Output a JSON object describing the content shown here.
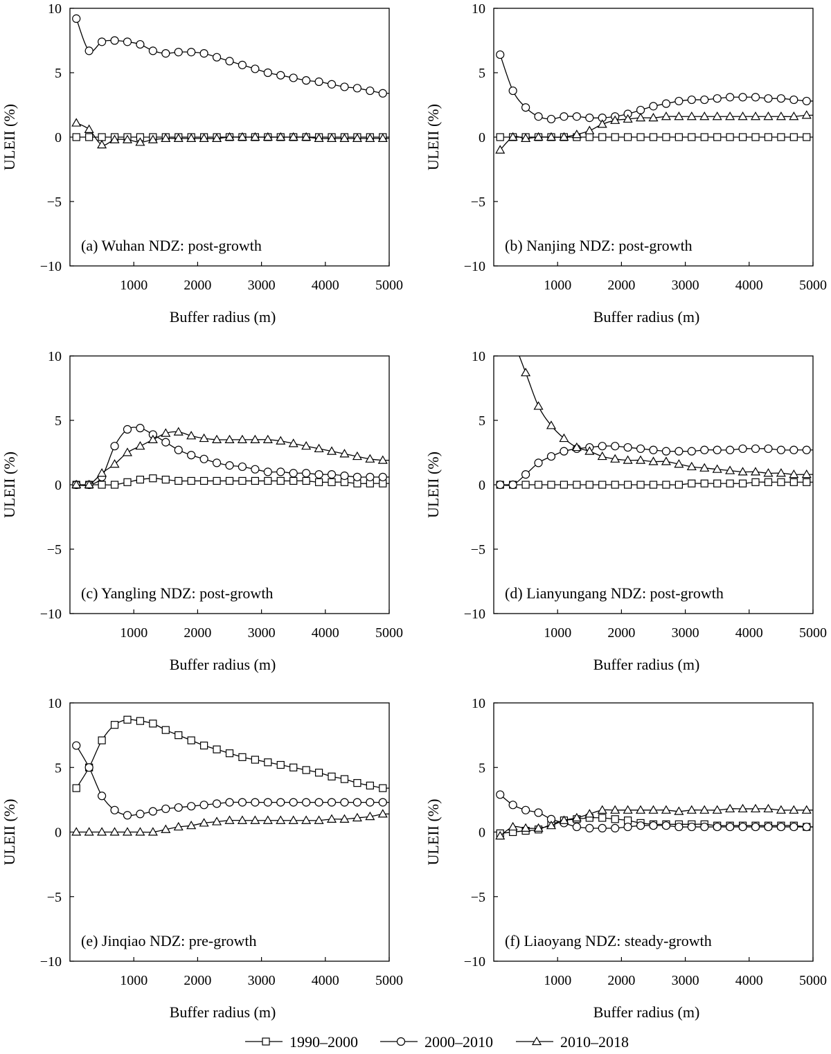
{
  "legend": [
    "1990–2000",
    "2000–2010",
    "2010–2018"
  ],
  "chart_data": [
    {
      "type": "line",
      "annotation": "(a) Wuhan NDZ: post-growth",
      "xlabel": "Buffer radius (m)",
      "ylabel": "ULEII (%)",
      "xlim": [
        0,
        5000
      ],
      "ylim": [
        -10,
        10
      ],
      "xticks": [
        "1000",
        "2000",
        "3000",
        "4000",
        "5000"
      ],
      "yticks": [
        "10",
        "5",
        "0",
        "−5",
        "−10"
      ],
      "x": [
        100,
        300,
        500,
        700,
        900,
        1100,
        1300,
        1500,
        1700,
        1900,
        2100,
        2300,
        2500,
        2700,
        2900,
        3100,
        3300,
        3500,
        3700,
        3900,
        4100,
        4300,
        4500,
        4700,
        4900
      ],
      "series": [
        {
          "name": "1990–2000",
          "marker": "square",
          "values": [
            0,
            0,
            0,
            0,
            0,
            0,
            0,
            0,
            0,
            0,
            0,
            0,
            0,
            0,
            0,
            0,
            0,
            0,
            0,
            0,
            0,
            0,
            0,
            0,
            0
          ]
        },
        {
          "name": "2000–2010",
          "marker": "circle",
          "values": [
            9.2,
            6.7,
            7.4,
            7.5,
            7.4,
            7.2,
            6.7,
            6.5,
            6.6,
            6.6,
            6.5,
            6.2,
            5.9,
            5.6,
            5.3,
            5.0,
            4.8,
            4.6,
            4.4,
            4.3,
            4.1,
            3.9,
            3.8,
            3.6,
            3.4
          ]
        },
        {
          "name": "2010–2018",
          "marker": "triangle",
          "values": [
            1.1,
            0.6,
            -0.6,
            -0.2,
            -0.2,
            -0.4,
            -0.2,
            -0.1,
            -0.1,
            -0.1,
            -0.1,
            -0.1,
            0,
            0,
            0,
            0,
            0,
            0,
            0,
            -0.1,
            -0.1,
            -0.1,
            -0.1,
            -0.1,
            -0.1
          ]
        }
      ]
    },
    {
      "type": "line",
      "annotation": "(b) Nanjing NDZ: post-growth",
      "xlabel": "Buffer radius (m)",
      "ylabel": "ULEII (%)",
      "xlim": [
        0,
        5000
      ],
      "ylim": [
        -10,
        10
      ],
      "xticks": [
        "1000",
        "2000",
        "3000",
        "4000",
        "5000"
      ],
      "yticks": [
        "10",
        "5",
        "0",
        "−5",
        "−10"
      ],
      "x": [
        100,
        300,
        500,
        700,
        900,
        1100,
        1300,
        1500,
        1700,
        1900,
        2100,
        2300,
        2500,
        2700,
        2900,
        3100,
        3300,
        3500,
        3700,
        3900,
        4100,
        4300,
        4500,
        4700,
        4900
      ],
      "series": [
        {
          "name": "1990–2000",
          "marker": "square",
          "values": [
            0,
            0,
            0,
            0,
            0,
            0,
            0,
            0,
            0,
            0,
            0,
            0,
            0,
            0,
            0,
            0,
            0,
            0,
            0,
            0,
            0,
            0,
            0,
            0,
            0
          ]
        },
        {
          "name": "2000–2010",
          "marker": "circle",
          "values": [
            6.4,
            3.6,
            2.3,
            1.6,
            1.4,
            1.6,
            1.6,
            1.5,
            1.5,
            1.6,
            1.8,
            2.1,
            2.4,
            2.6,
            2.8,
            2.9,
            2.9,
            3.0,
            3.1,
            3.1,
            3.1,
            3.0,
            3.0,
            2.9,
            2.8
          ]
        },
        {
          "name": "2010–2018",
          "marker": "triangle",
          "values": [
            -1.0,
            0,
            -0.1,
            0,
            0,
            0,
            0.2,
            0.5,
            1.0,
            1.3,
            1.4,
            1.5,
            1.5,
            1.6,
            1.6,
            1.6,
            1.6,
            1.6,
            1.6,
            1.6,
            1.6,
            1.6,
            1.6,
            1.6,
            1.7
          ]
        }
      ]
    },
    {
      "type": "line",
      "annotation": "(c) Yangling NDZ: post-growth",
      "xlabel": "Buffer radius (m)",
      "ylabel": "ULEII (%)",
      "xlim": [
        0,
        5000
      ],
      "ylim": [
        -10,
        10
      ],
      "xticks": [
        "1000",
        "2000",
        "3000",
        "4000",
        "5000"
      ],
      "yticks": [
        "10",
        "5",
        "0",
        "−5",
        "−10"
      ],
      "x": [
        100,
        300,
        500,
        700,
        900,
        1100,
        1300,
        1500,
        1700,
        1900,
        2100,
        2300,
        2500,
        2700,
        2900,
        3100,
        3300,
        3500,
        3700,
        3900,
        4100,
        4300,
        4500,
        4700,
        4900
      ],
      "series": [
        {
          "name": "1990–2000",
          "marker": "square",
          "values": [
            0,
            0,
            0,
            0,
            0.2,
            0.4,
            0.5,
            0.4,
            0.3,
            0.3,
            0.3,
            0.3,
            0.3,
            0.3,
            0.3,
            0.3,
            0.3,
            0.3,
            0.3,
            0.2,
            0.2,
            0.2,
            0.1,
            0.1,
            0.1
          ]
        },
        {
          "name": "2000–2010",
          "marker": "circle",
          "values": [
            0,
            0,
            0.6,
            3.0,
            4.3,
            4.4,
            3.9,
            3.3,
            2.7,
            2.3,
            2.0,
            1.7,
            1.5,
            1.4,
            1.2,
            1.0,
            1.0,
            0.9,
            0.9,
            0.8,
            0.8,
            0.7,
            0.6,
            0.6,
            0.6
          ]
        },
        {
          "name": "2010–2018",
          "marker": "triangle",
          "values": [
            0,
            0,
            0.9,
            1.6,
            2.5,
            3.0,
            3.5,
            4.0,
            4.1,
            3.8,
            3.6,
            3.5,
            3.5,
            3.5,
            3.5,
            3.5,
            3.4,
            3.2,
            3.0,
            2.8,
            2.6,
            2.4,
            2.2,
            2.0,
            1.9
          ]
        }
      ]
    },
    {
      "type": "line",
      "annotation": "(d) Lianyungang NDZ: post-growth",
      "xlabel": "Buffer radius (m)",
      "ylabel": "ULEII (%)",
      "xlim": [
        0,
        5000
      ],
      "ylim": [
        -10,
        10
      ],
      "xticks": [
        "1000",
        "2000",
        "3000",
        "4000",
        "5000"
      ],
      "yticks": [
        "10",
        "5",
        "0",
        "−5",
        "−10"
      ],
      "x": [
        100,
        300,
        500,
        700,
        900,
        1100,
        1300,
        1500,
        1700,
        1900,
        2100,
        2300,
        2500,
        2700,
        2900,
        3100,
        3300,
        3500,
        3700,
        3900,
        4100,
        4300,
        4500,
        4700,
        4900
      ],
      "series": [
        {
          "name": "1990–2000",
          "marker": "square",
          "values": [
            0,
            0,
            0,
            0,
            0,
            0,
            0,
            0,
            0,
            0,
            0,
            0,
            0,
            0,
            0,
            0.1,
            0.1,
            0.1,
            0.1,
            0.1,
            0.2,
            0.2,
            0.2,
            0.2,
            0.2
          ]
        },
        {
          "name": "2000–2010",
          "marker": "circle",
          "values": [
            0,
            0,
            0.8,
            1.7,
            2.2,
            2.6,
            2.8,
            2.9,
            3.0,
            3.0,
            2.9,
            2.8,
            2.7,
            2.6,
            2.6,
            2.6,
            2.7,
            2.7,
            2.7,
            2.8,
            2.8,
            2.8,
            2.7,
            2.7,
            2.7
          ]
        },
        {
          "name": "2010–2018",
          "marker": "triangle",
          "values": [
            null,
            null,
            8.7,
            6.1,
            4.6,
            3.6,
            2.9,
            2.6,
            2.2,
            2.0,
            1.9,
            1.9,
            1.8,
            1.8,
            1.6,
            1.4,
            1.3,
            1.2,
            1.1,
            1.0,
            1.0,
            0.9,
            0.9,
            0.8,
            0.8
          ]
        }
      ]
    },
    {
      "type": "line",
      "annotation": "(e) Jinqiao NDZ: pre-growth",
      "xlabel": "Buffer radius (m)",
      "ylabel": "ULEII (%)",
      "xlim": [
        0,
        5000
      ],
      "ylim": [
        -10,
        10
      ],
      "xticks": [
        "1000",
        "2000",
        "3000",
        "4000",
        "5000"
      ],
      "yticks": [
        "10",
        "5",
        "0",
        "−5",
        "−10"
      ],
      "x": [
        100,
        300,
        500,
        700,
        900,
        1100,
        1300,
        1500,
        1700,
        1900,
        2100,
        2300,
        2500,
        2700,
        2900,
        3100,
        3300,
        3500,
        3700,
        3900,
        4100,
        4300,
        4500,
        4700,
        4900
      ],
      "series": [
        {
          "name": "1990–2000",
          "marker": "square",
          "values": [
            3.4,
            5.0,
            7.1,
            8.3,
            8.7,
            8.6,
            8.4,
            7.9,
            7.5,
            7.1,
            6.7,
            6.4,
            6.1,
            5.8,
            5.6,
            5.4,
            5.2,
            5.0,
            4.8,
            4.6,
            4.3,
            4.1,
            3.8,
            3.6,
            3.4
          ]
        },
        {
          "name": "2000–2010",
          "marker": "circle",
          "values": [
            6.7,
            5.0,
            2.8,
            1.7,
            1.3,
            1.4,
            1.6,
            1.8,
            1.9,
            2.0,
            2.1,
            2.2,
            2.3,
            2.3,
            2.3,
            2.3,
            2.3,
            2.3,
            2.3,
            2.3,
            2.3,
            2.3,
            2.3,
            2.3,
            2.3
          ]
        },
        {
          "name": "2010–2018",
          "marker": "triangle",
          "values": [
            0,
            0,
            0,
            0,
            0,
            0,
            0,
            0.2,
            0.4,
            0.5,
            0.7,
            0.8,
            0.9,
            0.9,
            0.9,
            0.9,
            0.9,
            0.9,
            0.9,
            0.9,
            1.0,
            1.0,
            1.1,
            1.2,
            1.4
          ]
        }
      ]
    },
    {
      "type": "line",
      "annotation": "(f) Liaoyang NDZ: steady-growth",
      "xlabel": "Buffer radius (m)",
      "ylabel": "ULEII (%)",
      "xlim": [
        0,
        5000
      ],
      "ylim": [
        -10,
        10
      ],
      "xticks": [
        "1000",
        "2000",
        "3000",
        "4000",
        "5000"
      ],
      "yticks": [
        "10",
        "5",
        "0",
        "−5",
        "−10"
      ],
      "x": [
        100,
        300,
        500,
        700,
        900,
        1100,
        1300,
        1500,
        1700,
        1900,
        2100,
        2300,
        2500,
        2700,
        2900,
        3100,
        3300,
        3500,
        3700,
        3900,
        4100,
        4300,
        4500,
        4700,
        4900
      ],
      "series": [
        {
          "name": "1990–2000",
          "marker": "square",
          "values": [
            -0.1,
            0,
            0.1,
            0.2,
            0.6,
            0.9,
            1.0,
            1.1,
            1.1,
            1.0,
            0.9,
            0.7,
            0.6,
            0.6,
            0.6,
            0.6,
            0.6,
            0.5,
            0.5,
            0.5,
            0.5,
            0.5,
            0.5,
            0.5,
            0.4
          ]
        },
        {
          "name": "2000–2010",
          "marker": "circle",
          "values": [
            2.9,
            2.1,
            1.7,
            1.5,
            1.0,
            0.7,
            0.4,
            0.3,
            0.3,
            0.3,
            0.4,
            0.5,
            0.5,
            0.5,
            0.4,
            0.4,
            0.4,
            0.4,
            0.4,
            0.4,
            0.4,
            0.4,
            0.4,
            0.4,
            0.4
          ]
        },
        {
          "name": "2010–2018",
          "marker": "triangle",
          "values": [
            -0.3,
            0.4,
            0.3,
            0.3,
            0.5,
            0.9,
            1.1,
            1.4,
            1.7,
            1.7,
            1.7,
            1.7,
            1.7,
            1.7,
            1.6,
            1.7,
            1.7,
            1.7,
            1.8,
            1.8,
            1.8,
            1.8,
            1.7,
            1.7,
            1.7
          ]
        }
      ]
    }
  ]
}
